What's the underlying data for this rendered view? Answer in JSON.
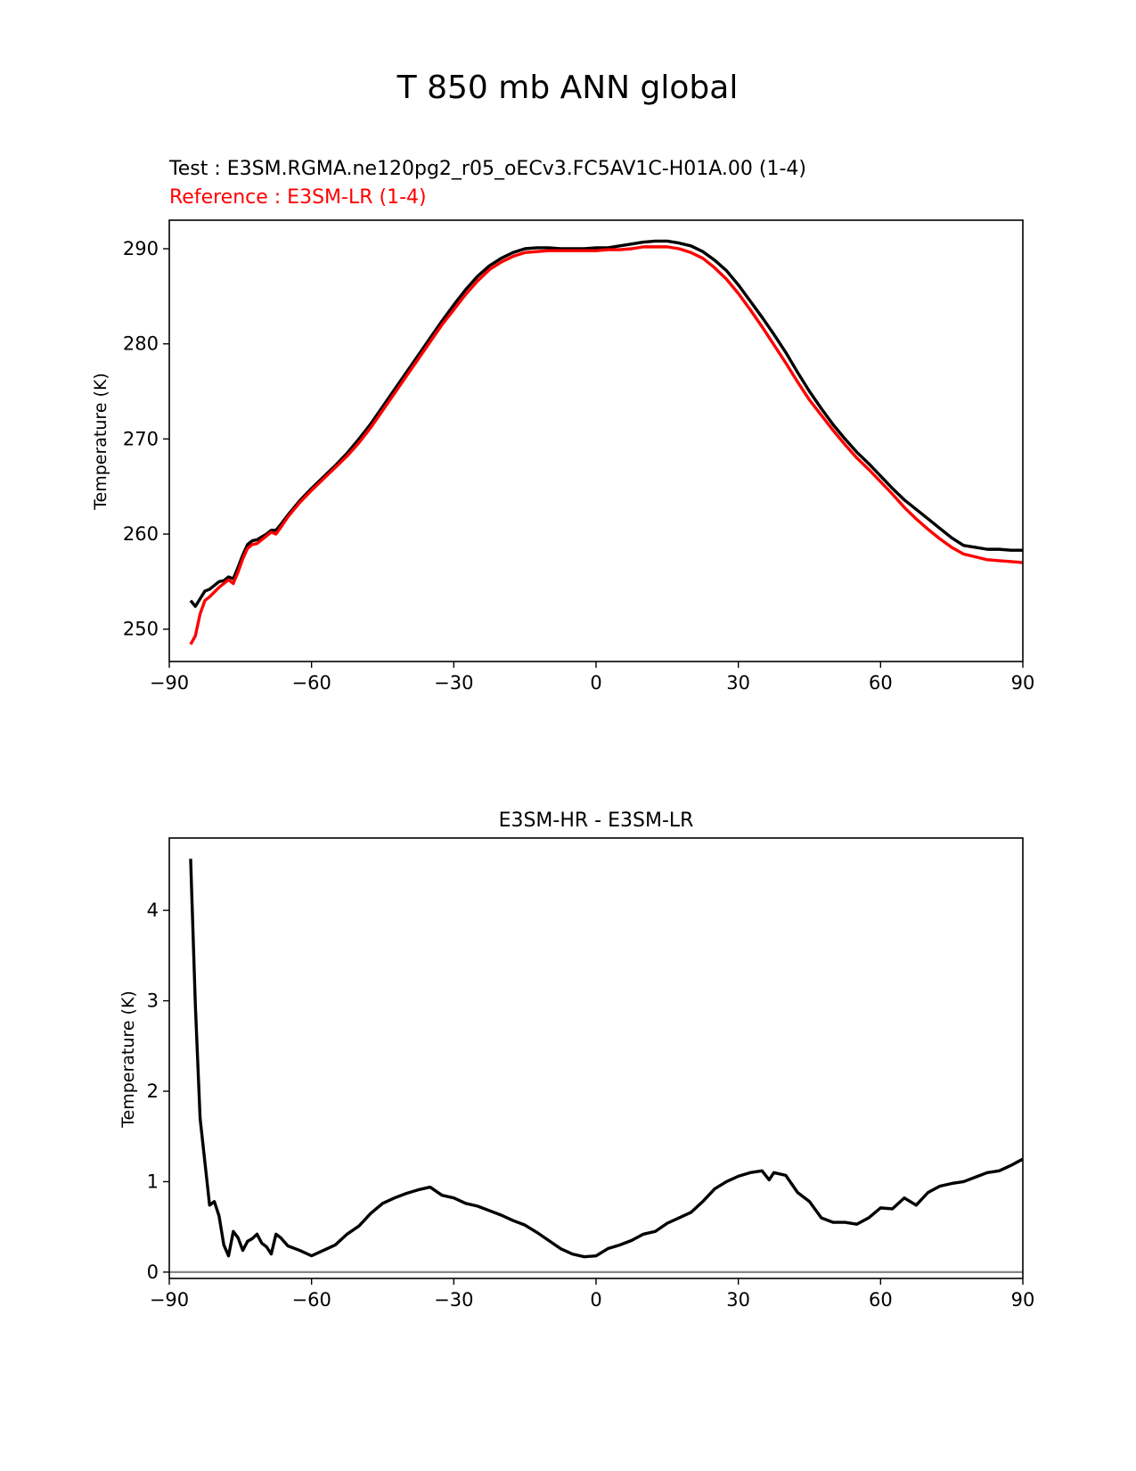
{
  "figure": {
    "suptitle": "T 850 mb ANN global"
  },
  "colors": {
    "test": "#000000",
    "reference": "#ff0000",
    "zero_line": "#888888"
  },
  "chart_data": [
    {
      "type": "line",
      "title_test": "Test : E3SM.RGMA.ne120pg2_r05_oECv3.FC5AV1C-H01A.00 (1-4)",
      "title_reference": "Reference : E3SM-LR (1-4)",
      "xlabel": "",
      "ylabel": "Temperature (K)",
      "xlim": [
        -90,
        90
      ],
      "ylim": [
        246.6,
        293.0
      ],
      "xticks": [
        -90,
        -60,
        -30,
        0,
        30,
        60,
        90
      ],
      "xtick_labels": [
        "−90",
        "−60",
        "−30",
        "0",
        "30",
        "60",
        "90"
      ],
      "yticks": [
        250,
        260,
        270,
        280,
        290
      ],
      "ytick_labels": [
        "250",
        "260",
        "270",
        "280",
        "290"
      ],
      "grid": false,
      "series": [
        {
          "name": "Test : E3SM.RGMA.ne120pg2_r05_oECv3.FC5AV1C-H01A.00 (1-4)",
          "color": "#000000",
          "x": [
            -85.5,
            -84.5,
            -83.5,
            -82.5,
            -81.5,
            -80.5,
            -79.5,
            -78.5,
            -77.5,
            -76.5,
            -75.5,
            -74.5,
            -73.5,
            -72.5,
            -71.5,
            -70.5,
            -69.5,
            -68.5,
            -67.5,
            -66.5,
            -65,
            -62.5,
            -60,
            -57.5,
            -55,
            -52.5,
            -50,
            -47.5,
            -45,
            -42.5,
            -40,
            -37.5,
            -35,
            -32.5,
            -30,
            -27.5,
            -25,
            -22.5,
            -20,
            -17.5,
            -15,
            -12.5,
            -10,
            -7.5,
            -5,
            -2.5,
            0,
            2.5,
            5,
            7.5,
            10,
            12.5,
            15,
            17.5,
            20,
            22.5,
            25,
            27.5,
            30,
            32.5,
            35,
            37.5,
            40,
            42.5,
            45,
            47.5,
            50,
            52.5,
            55,
            57.5,
            60,
            62.5,
            65,
            67.5,
            70,
            72.5,
            75,
            77.5,
            80,
            82.5,
            85,
            87.5,
            90
          ],
          "y": [
            253.0,
            252.4,
            253.2,
            254.0,
            254.2,
            254.6,
            255.0,
            255.1,
            255.5,
            255.3,
            256.5,
            257.8,
            258.9,
            259.3,
            259.4,
            259.7,
            260.0,
            260.4,
            260.4,
            261.0,
            262.0,
            263.5,
            264.8,
            266.0,
            267.2,
            268.5,
            270.0,
            271.6,
            273.4,
            275.2,
            277.0,
            278.8,
            280.6,
            282.4,
            284.1,
            285.7,
            287.1,
            288.2,
            289.0,
            289.6,
            290.0,
            290.1,
            290.1,
            290.0,
            290.0,
            290.0,
            290.1,
            290.1,
            290.3,
            290.5,
            290.7,
            290.8,
            290.8,
            290.6,
            290.3,
            289.7,
            288.8,
            287.7,
            286.2,
            284.5,
            282.8,
            281.0,
            279.1,
            277.0,
            275.0,
            273.2,
            271.5,
            270.0,
            268.6,
            267.4,
            266.1,
            264.8,
            263.6,
            262.6,
            261.6,
            260.6,
            259.6,
            258.8,
            258.6,
            258.4,
            258.4,
            258.3,
            258.3
          ]
        },
        {
          "name": "Reference : E3SM-LR (1-4)",
          "color": "#ff0000",
          "x": [
            -85.5,
            -84.5,
            -83.5,
            -82.5,
            -81.5,
            -80.5,
            -79.5,
            -78.5,
            -77.5,
            -76.5,
            -75.5,
            -74.5,
            -73.5,
            -72.5,
            -71.5,
            -70.5,
            -69.5,
            -68.5,
            -67.5,
            -66.5,
            -65,
            -62.5,
            -60,
            -57.5,
            -55,
            -52.5,
            -50,
            -47.5,
            -45,
            -42.5,
            -40,
            -37.5,
            -35,
            -32.5,
            -30,
            -27.5,
            -25,
            -22.5,
            -20,
            -17.5,
            -15,
            -12.5,
            -10,
            -7.5,
            -5,
            -2.5,
            0,
            2.5,
            5,
            7.5,
            10,
            12.5,
            15,
            17.5,
            20,
            22.5,
            25,
            27.5,
            30,
            32.5,
            35,
            37.5,
            40,
            42.5,
            45,
            47.5,
            50,
            52.5,
            55,
            57.5,
            60,
            62.5,
            65,
            67.5,
            70,
            72.5,
            75,
            77.5,
            80,
            82.5,
            85,
            87.5,
            90
          ],
          "y": [
            248.4,
            249.3,
            251.6,
            253.0,
            253.4,
            253.9,
            254.4,
            254.8,
            255.2,
            254.8,
            256.0,
            257.4,
            258.5,
            258.9,
            259.0,
            259.4,
            259.8,
            260.2,
            260.0,
            260.7,
            261.8,
            263.3,
            264.6,
            265.8,
            267.0,
            268.2,
            269.6,
            271.2,
            273.0,
            274.8,
            276.6,
            278.4,
            280.2,
            282.0,
            283.6,
            285.2,
            286.6,
            287.8,
            288.6,
            289.2,
            289.6,
            289.7,
            289.8,
            289.8,
            289.8,
            289.8,
            289.8,
            289.9,
            289.9,
            290.0,
            290.2,
            290.2,
            290.2,
            290.0,
            289.6,
            289.0,
            288.0,
            286.8,
            285.3,
            283.6,
            281.8,
            279.9,
            278.0,
            276.0,
            274.1,
            272.5,
            270.9,
            269.4,
            268.0,
            266.8,
            265.5,
            264.2,
            262.8,
            261.6,
            260.5,
            259.5,
            258.6,
            257.9,
            257.6,
            257.3,
            257.2,
            257.1,
            257.0
          ]
        }
      ]
    },
    {
      "type": "line",
      "title": "E3SM-HR - E3SM-LR",
      "xlabel": "",
      "ylabel": "Temperature (K)",
      "xlim": [
        -90,
        90
      ],
      "ylim": [
        -0.07,
        4.8
      ],
      "xticks": [
        -90,
        -60,
        -30,
        0,
        30,
        60,
        90
      ],
      "xtick_labels": [
        "−90",
        "−60",
        "−30",
        "0",
        "30",
        "60",
        "90"
      ],
      "yticks": [
        0,
        1,
        2,
        3,
        4
      ],
      "ytick_labels": [
        "0",
        "1",
        "2",
        "3",
        "4"
      ],
      "grid": false,
      "zero_line": 0,
      "series": [
        {
          "color": "#000000",
          "x": [
            -85.5,
            -84.5,
            -83.5,
            -82.5,
            -81.5,
            -80.5,
            -79.5,
            -78.5,
            -77.5,
            -76.5,
            -75.5,
            -74.5,
            -73.5,
            -72.5,
            -71.5,
            -70.5,
            -69.5,
            -68.5,
            -67.5,
            -66.5,
            -65,
            -62.5,
            -60,
            -57.5,
            -55,
            -52.5,
            -50,
            -47.5,
            -45,
            -42.5,
            -40,
            -37.5,
            -35,
            -32.5,
            -30,
            -27.5,
            -25,
            -22.5,
            -20,
            -17.5,
            -15,
            -12.5,
            -10,
            -7.5,
            -5,
            -2.5,
            0,
            2.5,
            5,
            7.5,
            10,
            12.5,
            15,
            17.5,
            20,
            22.5,
            25,
            27.5,
            30,
            32.5,
            35,
            36.5,
            37.5,
            40,
            42.5,
            45,
            47.5,
            50,
            52.5,
            55,
            57.5,
            60,
            62.5,
            65,
            67.5,
            70,
            72.5,
            75,
            77.5,
            80,
            82.5,
            85,
            87.5,
            90
          ],
          "y": [
            4.57,
            2.95,
            1.7,
            1.22,
            0.74,
            0.78,
            0.62,
            0.3,
            0.18,
            0.45,
            0.38,
            0.24,
            0.34,
            0.37,
            0.42,
            0.32,
            0.28,
            0.2,
            0.42,
            0.38,
            0.29,
            0.24,
            0.18,
            0.24,
            0.3,
            0.42,
            0.51,
            0.65,
            0.76,
            0.82,
            0.87,
            0.91,
            0.94,
            0.85,
            0.82,
            0.76,
            0.73,
            0.68,
            0.63,
            0.57,
            0.52,
            0.44,
            0.35,
            0.26,
            0.2,
            0.17,
            0.18,
            0.26,
            0.3,
            0.35,
            0.42,
            0.45,
            0.54,
            0.6,
            0.66,
            0.78,
            0.92,
            1.0,
            1.06,
            1.1,
            1.12,
            1.02,
            1.1,
            1.07,
            0.88,
            0.78,
            0.6,
            0.55,
            0.55,
            0.53,
            0.6,
            0.71,
            0.7,
            0.82,
            0.74,
            0.88,
            0.95,
            0.98,
            1.0,
            1.05,
            1.1,
            1.12,
            1.18,
            1.25
          ]
        }
      ]
    }
  ]
}
